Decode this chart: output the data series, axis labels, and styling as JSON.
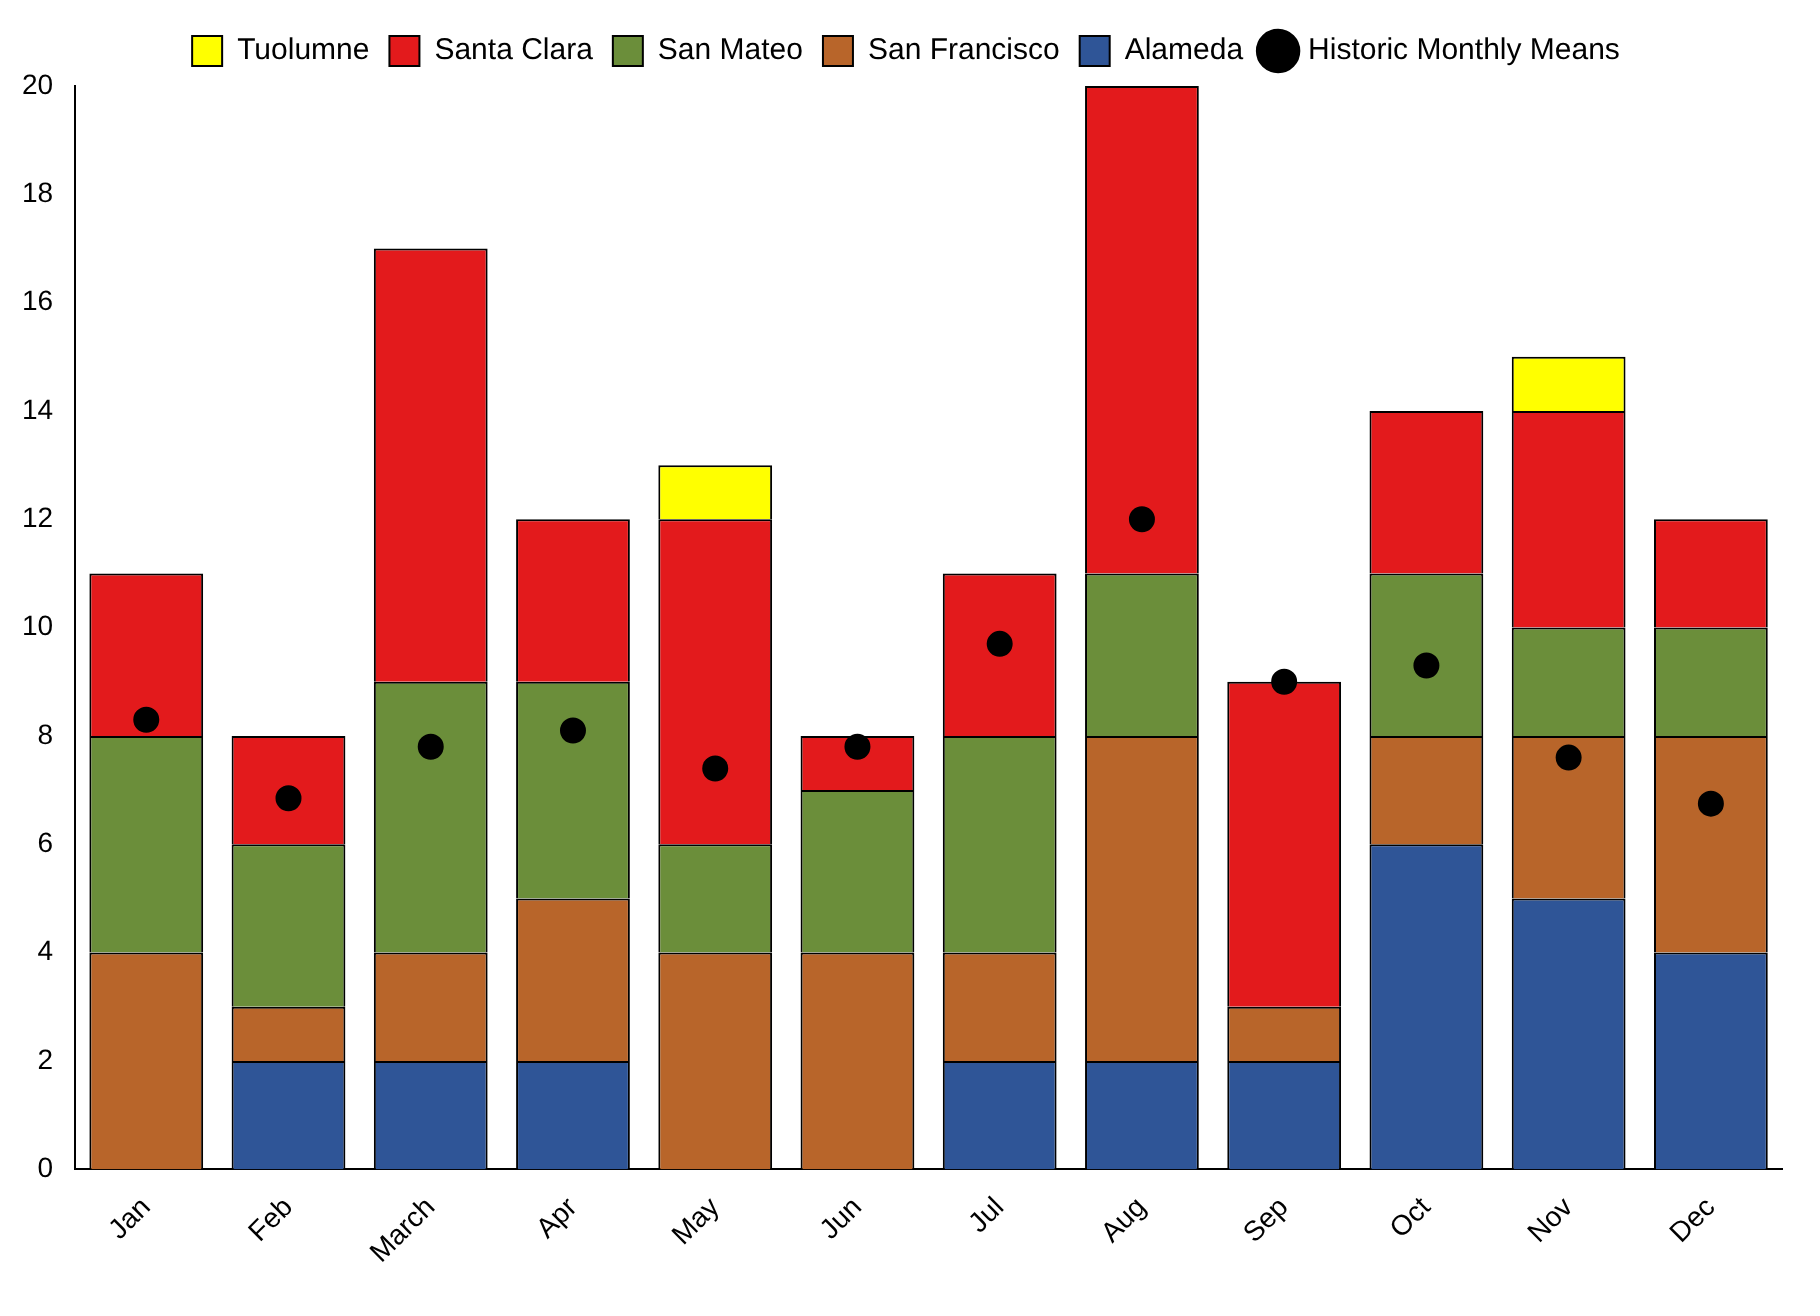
{
  "chart_data": {
    "type": "bar",
    "stacked": true,
    "categories": [
      "Jan",
      "Feb",
      "March",
      "Apr",
      "May",
      "Jun",
      "Jul",
      "Aug",
      "Sep",
      "Oct",
      "Nov",
      "Dec"
    ],
    "series": [
      {
        "name": "Alameda",
        "color": "#2f5597",
        "values": [
          0,
          2,
          2,
          2,
          0,
          0,
          2,
          2,
          2,
          6,
          5,
          4
        ]
      },
      {
        "name": "San Francisco",
        "color": "#b8652a",
        "values": [
          4,
          1,
          2,
          3,
          4,
          4,
          2,
          6,
          1,
          2,
          3,
          4
        ]
      },
      {
        "name": "San Mateo",
        "color": "#6b8e3a",
        "values": [
          4,
          3,
          5,
          4,
          2,
          3,
          4,
          3,
          0,
          3,
          2,
          2
        ]
      },
      {
        "name": "Santa Clara",
        "color": "#e31a1c",
        "values": [
          3,
          2,
          8,
          3,
          6,
          1,
          3,
          9,
          6,
          3,
          4,
          2
        ]
      },
      {
        "name": "Tuolumne",
        "color": "#ffff00",
        "values": [
          0,
          0,
          0,
          0,
          1,
          0,
          0,
          0,
          0,
          0,
          1,
          0
        ]
      },
      {
        "name": "Historic Monthly Means",
        "type": "scatter",
        "color": "#000000",
        "marker": "circle",
        "x": [
          "Jan",
          "Feb",
          "March",
          "Apr",
          "May",
          "Jun",
          "Jul",
          "Aug",
          "Sep",
          "Oct",
          "Nov",
          "Dec"
        ],
        "values": [
          8.3,
          6.85,
          7.8,
          8.1,
          7.4,
          7.8,
          9.7,
          12.0,
          9.0,
          9.3,
          7.6,
          6.75
        ]
      }
    ],
    "ylim": [
      0,
      20
    ],
    "yticks": [
      0,
      2,
      4,
      6,
      8,
      10,
      12,
      14,
      16,
      18,
      20
    ],
    "grid": false,
    "legend": "top"
  }
}
